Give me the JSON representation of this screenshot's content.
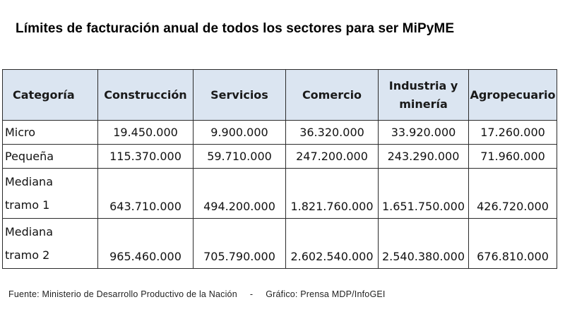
{
  "title": "Límites de facturación anual de todos los sectores para ser MiPyME",
  "table": {
    "headers": [
      "Categoría",
      "Construcción",
      "Servicios",
      "Comercio",
      "Industria y minería",
      "Agropecuario"
    ],
    "rows": [
      {
        "category": "Micro",
        "values": [
          "19.450.000",
          "9.900.000",
          "36.320.000",
          "33.920.000",
          "17.260.000"
        ]
      },
      {
        "category": "Pequeña",
        "values": [
          "115.370.000",
          "59.710.000",
          "247.200.000",
          "243.290.000",
          "71.960.000"
        ]
      },
      {
        "category": "Mediana tramo 1",
        "values": [
          "643.710.000",
          "494.200.000",
          "1.821.760.000",
          "1.651.750.000",
          "426.720.000"
        ]
      },
      {
        "category": "Mediana tramo 2",
        "values": [
          "965.460.000",
          "705.790.000",
          "2.602.540.000",
          "2.540.380.000",
          "676.810.000"
        ]
      }
    ]
  },
  "footer": {
    "source": "Fuente: Ministerio de Desarrollo Productivo de la Nación",
    "separator": "-",
    "credit": "Gráfico: Prensa MDP/InfoGEI"
  },
  "colors": {
    "header_background": "#dbe5f1",
    "border": "#2b2b2b"
  }
}
